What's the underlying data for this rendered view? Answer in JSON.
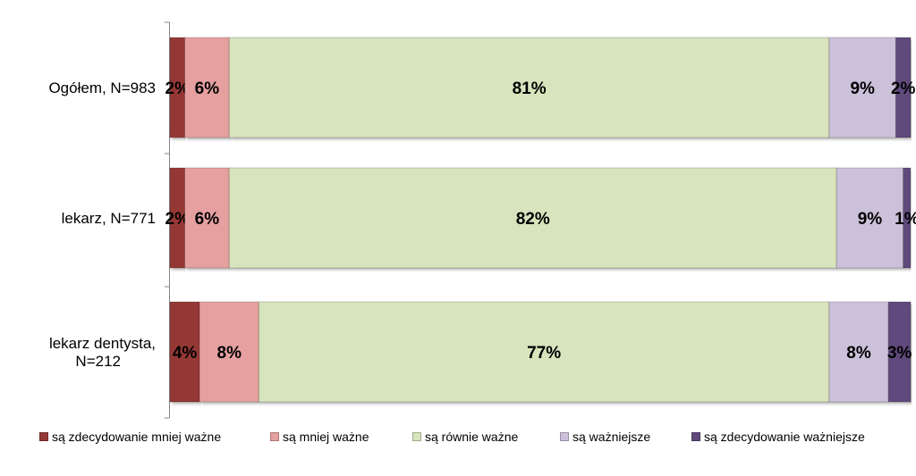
{
  "chart_data": {
    "type": "bar",
    "orientation": "horizontal",
    "stacked": true,
    "percent": true,
    "categories": [
      "Ogółem, N=983",
      "lekarz, N=771",
      "lekarz dentysta,\nN=212"
    ],
    "series": [
      {
        "name": "są zdecydowanie mniej ważne",
        "values": [
          2,
          2,
          4
        ],
        "labels": [
          "2%",
          "2%",
          "4%"
        ],
        "color": "#953735"
      },
      {
        "name": "są mniej ważne",
        "values": [
          6,
          6,
          8
        ],
        "labels": [
          "6%",
          "6%",
          "8%"
        ],
        "color": "#e6a0a0"
      },
      {
        "name": "są równie ważne",
        "values": [
          81,
          82,
          77
        ],
        "labels": [
          "81%",
          "82%",
          "77%"
        ],
        "color": "#d7e4bd"
      },
      {
        "name": "są ważniejsze",
        "values": [
          9,
          9,
          8
        ],
        "labels": [
          "9%",
          "9%",
          "8%"
        ],
        "color": "#ccc1da"
      },
      {
        "name": "są zdecydowanie ważniejsze",
        "values": [
          2,
          1,
          3
        ],
        "labels": [
          "2%",
          "1%",
          "3%"
        ],
        "color": "#604a7b"
      }
    ],
    "xlim": [
      0,
      100
    ],
    "grid": false,
    "legend_position": "bottom"
  }
}
